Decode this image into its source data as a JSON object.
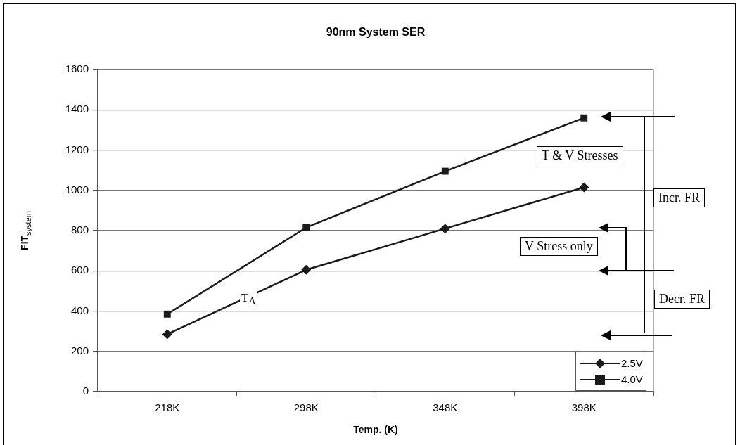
{
  "chart_data": {
    "type": "line",
    "title": "90nm System SER",
    "xlabel": "Temp. (K)",
    "ylabel": "FIT$_{system}$",
    "categories": [
      "218K",
      "298K",
      "348K",
      "398K"
    ],
    "series": [
      {
        "name": "2.5V",
        "color": "#1a1a1a",
        "marker": "diamond",
        "values": [
          285,
          605,
          810,
          1015
        ]
      },
      {
        "name": "4.0V",
        "color": "#1a1a1a",
        "marker": "square",
        "values": [
          385,
          815,
          1095,
          1360
        ]
      }
    ],
    "ylim": [
      0,
      1600
    ],
    "yticks": [
      0,
      200,
      400,
      600,
      800,
      1000,
      1200,
      1400,
      1600
    ],
    "grid": "y",
    "legend": "bottom right",
    "line_style": "solid",
    "annotations": [
      "T & V Stresses",
      "Incr. FR",
      "V Stress only",
      "Decr. FR",
      "T$_{A}$"
    ]
  }
}
